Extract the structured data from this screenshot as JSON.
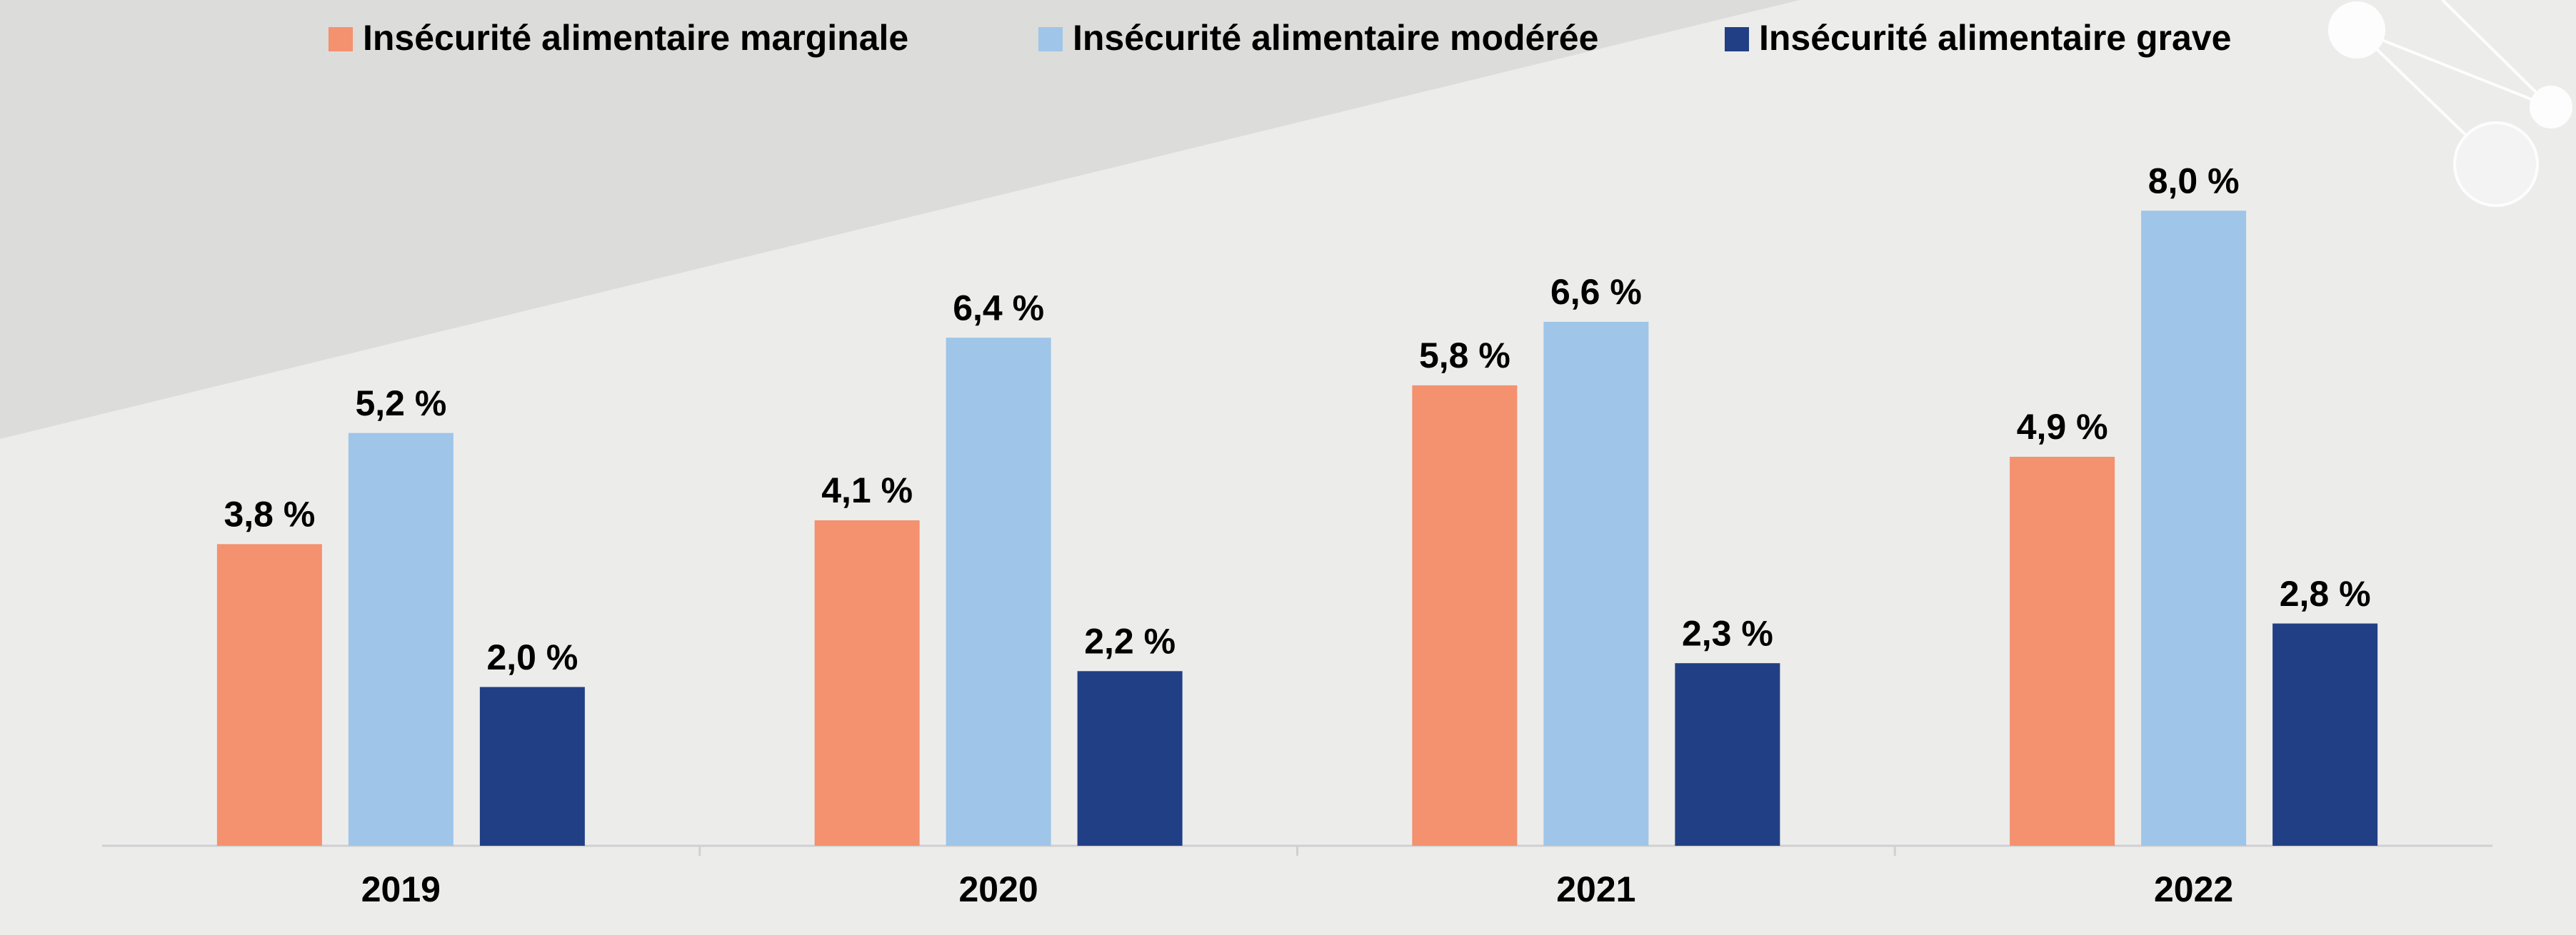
{
  "chart_data": {
    "type": "bar",
    "categories": [
      "2019",
      "2020",
      "2021",
      "2022"
    ],
    "series": [
      {
        "name": "Insécurité alimentaire marginale",
        "color": "#f4916f",
        "values": [
          3.8,
          4.1,
          5.8,
          4.9
        ],
        "value_labels": [
          "3,8 %",
          "4,1 %",
          "5,8 %",
          "4,9 %"
        ]
      },
      {
        "name": "Insécurité alimentaire modérée",
        "color": "#9fc5e8",
        "values": [
          5.2,
          6.4,
          6.6,
          8.0
        ],
        "value_labels": [
          "5,2 %",
          "6,4 %",
          "6,6 %",
          "8,0 %"
        ]
      },
      {
        "name": "Insécurité alimentaire grave",
        "color": "#213f85",
        "values": [
          2.0,
          2.2,
          2.3,
          2.8
        ],
        "value_labels": [
          "2,0 %",
          "2,2 %",
          "2,3 %",
          "2,8 %"
        ]
      }
    ],
    "ylim": [
      0,
      10.6
    ],
    "legend": "top"
  }
}
